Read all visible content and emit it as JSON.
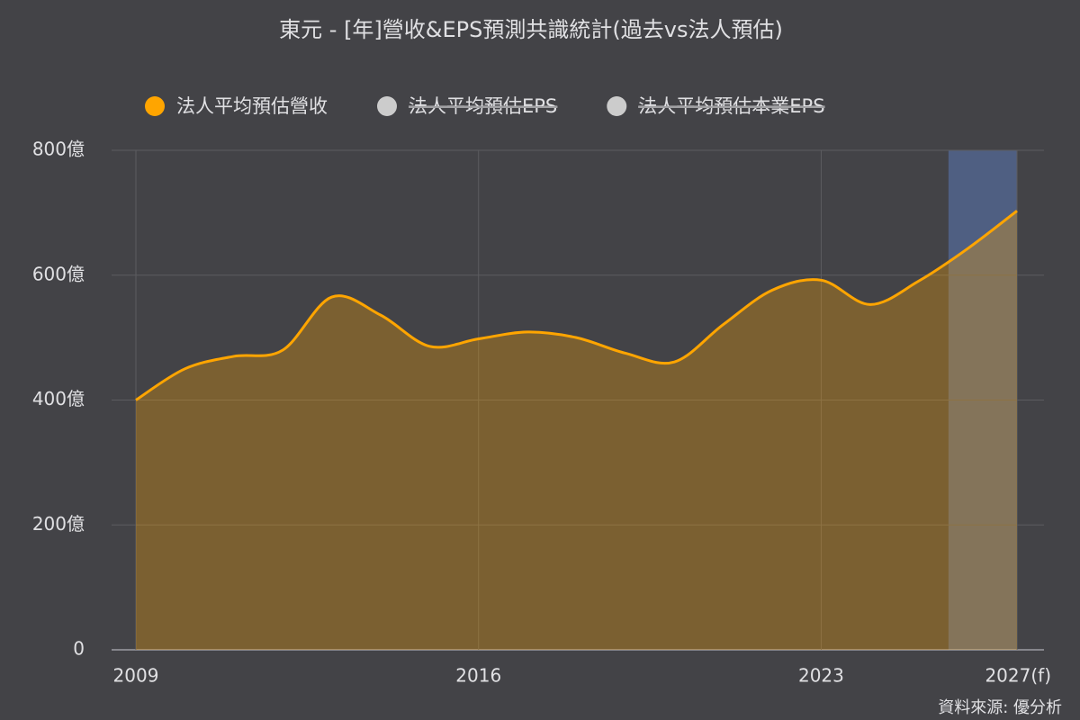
{
  "chart_data": {
    "type": "area",
    "title": "東元 - [年]營收&EPS預測共識統計(過去vs法人預估)",
    "source": "資料來源: 優分析",
    "x": [
      2009,
      2010,
      2011,
      2012,
      2013,
      2014,
      2015,
      2016,
      2017,
      2018,
      2019,
      2020,
      2021,
      2022,
      2023,
      2024,
      2025,
      2026,
      2027
    ],
    "series": [
      {
        "name": "法人平均預估營收",
        "color": "#ffa500",
        "visible": true,
        "values": [
          400,
          450,
          470,
          480,
          565,
          536,
          486,
          498,
          509,
          500,
          475,
          461,
          521,
          576,
          592,
          553,
          591,
          643,
          703
        ]
      },
      {
        "name": "法人平均預估EPS",
        "color": "#cccccc",
        "visible": false
      },
      {
        "name": "法人平均預估本業EPS",
        "color": "#cccccc",
        "visible": false
      }
    ],
    "highlight_x": [
      2025.6,
      2027
    ],
    "highlight_color": "#4f5f82",
    "xlim": [
      2009,
      2027
    ],
    "xticks": [
      2009,
      2016,
      2023,
      {
        "value": 2027,
        "label": "2027(f)"
      }
    ],
    "ylim": [
      0,
      800
    ],
    "yticks": [
      0,
      {
        "value": 200,
        "label": "200億"
      },
      {
        "value": 400,
        "label": "400億"
      },
      {
        "value": 600,
        "label": "600億"
      },
      {
        "value": 800,
        "label": "800億"
      }
    ],
    "grid": true
  }
}
